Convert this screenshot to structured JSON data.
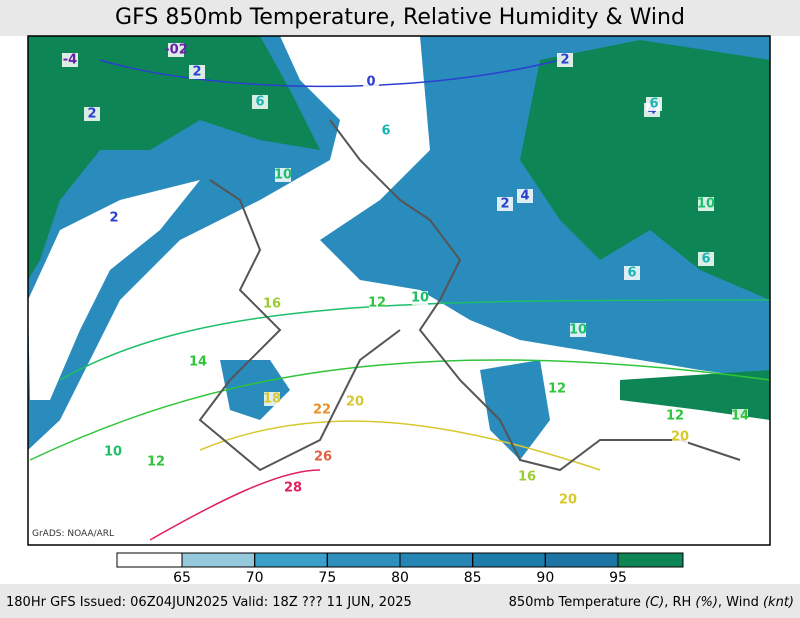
{
  "header": {
    "title": "GFS 850mb Temperature, Relative Humidity & Wind"
  },
  "map": {
    "credit": "GrADS: NOAA/ARL",
    "contour_labels": [
      {
        "text": "-4",
        "color": "#6a1fa8"
      },
      {
        "text": "-02",
        "color": "#6a1fa8"
      },
      {
        "text": "2",
        "color": "#2b3fd0"
      },
      {
        "text": "2",
        "color": "#2b3fd0"
      },
      {
        "text": "2",
        "color": "#2b3fd0"
      },
      {
        "text": "0",
        "color": "#2b3fd0"
      },
      {
        "text": "2",
        "color": "#2b3fd0"
      },
      {
        "text": "2",
        "color": "#2b3fd0"
      },
      {
        "text": "4",
        "color": "#2b3fd0"
      },
      {
        "text": "6",
        "color": "#19b4b4"
      },
      {
        "text": "6",
        "color": "#19b4b4"
      },
      {
        "text": "6",
        "color": "#19b4b4"
      },
      {
        "text": "6",
        "color": "#19b4b4"
      },
      {
        "text": "6",
        "color": "#19b4b4"
      },
      {
        "text": "10",
        "color": "#1cbf6a"
      },
      {
        "text": "10",
        "color": "#1cbf6a"
      },
      {
        "text": "10",
        "color": "#1cbf6a"
      },
      {
        "text": "10",
        "color": "#1cbf6a"
      },
      {
        "text": "12",
        "color": "#2fc43a"
      },
      {
        "text": "12",
        "color": "#2fc43a"
      },
      {
        "text": "12",
        "color": "#2fc43a"
      },
      {
        "text": "14",
        "color": "#2fc43a"
      },
      {
        "text": "14",
        "color": "#2fc43a"
      },
      {
        "text": "16",
        "color": "#9acd32"
      },
      {
        "text": "16",
        "color": "#9acd32"
      },
      {
        "text": "18",
        "color": "#d8c830"
      },
      {
        "text": "20",
        "color": "#d8c830"
      },
      {
        "text": "20",
        "color": "#d8c830"
      },
      {
        "text": "20",
        "color": "#d8c830"
      },
      {
        "text": "22",
        "color": "#e8902a"
      },
      {
        "text": "26",
        "color": "#e06040"
      },
      {
        "text": "28",
        "color": "#e0205a"
      },
      {
        "text": "4",
        "color": "#2b3fd0"
      },
      {
        "text": "12",
        "color": "#2fc43a"
      },
      {
        "text": "10",
        "color": "#1cbf6a"
      }
    ]
  },
  "colorbar": {
    "ticks": [
      65,
      70,
      75,
      80,
      85,
      90,
      95
    ],
    "colors": [
      "#ffffff",
      "#96c8dc",
      "#3c9fc9",
      "#2f8fbd",
      "#2585b3",
      "#1e7cab",
      "#1c74a5",
      "#0e8554"
    ]
  },
  "footer": {
    "left": "180Hr GFS Issued: 06Z04JUN2025 Valid: 18Z ??? 11 JUN, 2025",
    "right": [
      "850mb Temperature ",
      "(C)",
      ", RH ",
      "(%)",
      ", Wind ",
      "(knt)"
    ]
  }
}
